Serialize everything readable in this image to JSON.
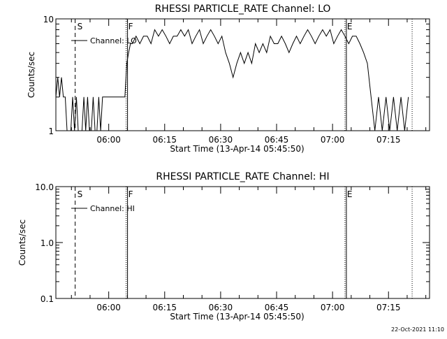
{
  "footer_date": "22-Oct-2021 11:10",
  "chart_data": [
    {
      "type": "line",
      "title": "RHESSI PARTICLE_RATE Channel: LO",
      "xlabel": "Start Time (13-Apr-14 05:45:50)",
      "ylabel": "Counts/sec",
      "yscale": "log",
      "ylim": [
        1,
        10
      ],
      "ytick_labels": [
        "1",
        "10"
      ],
      "xlim": [
        "05:45:50",
        "07:26:00"
      ],
      "xtick_labels": [
        "06:00",
        "06:15",
        "06:30",
        "06:45",
        "07:00",
        "07:15"
      ],
      "legend": {
        "entry": "Channel: LO",
        "placement": "top-left"
      },
      "markers": [
        {
          "label": "S",
          "time": "05:51:00",
          "style": "dashed"
        },
        {
          "label": "F",
          "time": "06:04:40",
          "style": "dotted"
        },
        {
          "label": "E",
          "time": "07:03:20",
          "style": "dotted"
        },
        {
          "label": "",
          "time": "07:21:20",
          "style": "dotted"
        }
      ],
      "series": [
        {
          "name": "Channel: LO",
          "x": [
            "05:45:50",
            "05:46:20",
            "05:46:50",
            "05:47:20",
            "05:47:50",
            "05:48:20",
            "05:48:50",
            "05:49:20",
            "05:49:50",
            "05:50:20",
            "05:50:50",
            "05:51:20",
            "05:51:50",
            "05:52:20",
            "05:52:50",
            "05:53:20",
            "05:53:50",
            "05:54:20",
            "05:54:50",
            "05:55:20",
            "05:55:50",
            "05:56:20",
            "05:56:50",
            "05:57:20",
            "05:57:50",
            "05:58:20",
            "05:58:50",
            "05:59:20",
            "05:59:50",
            "06:00:20",
            "06:00:50",
            "06:01:20",
            "06:01:50",
            "06:02:20",
            "06:02:50",
            "06:03:20",
            "06:03:50",
            "06:04:20",
            "06:04:50",
            "06:05:20",
            "06:05:50",
            "06:06:20",
            "06:07:20",
            "06:08:20",
            "06:09:20",
            "06:10:20",
            "06:11:20",
            "06:12:20",
            "06:13:20",
            "06:14:20",
            "06:15:20",
            "06:16:20",
            "06:17:20",
            "06:18:20",
            "06:19:20",
            "06:20:20",
            "06:21:20",
            "06:22:20",
            "06:23:20",
            "06:24:20",
            "06:25:20",
            "06:26:20",
            "06:27:20",
            "06:28:20",
            "06:29:20",
            "06:30:20",
            "06:31:20",
            "06:32:20",
            "06:33:20",
            "06:34:20",
            "06:35:20",
            "06:36:20",
            "06:37:20",
            "06:38:20",
            "06:39:20",
            "06:40:20",
            "06:41:20",
            "06:42:20",
            "06:43:20",
            "06:44:20",
            "06:45:20",
            "06:46:20",
            "06:47:20",
            "06:48:20",
            "06:49:20",
            "06:50:20",
            "06:51:20",
            "06:52:20",
            "06:53:20",
            "06:54:20",
            "06:55:20",
            "06:56:20",
            "06:57:20",
            "06:58:20",
            "06:59:20",
            "07:00:20",
            "07:01:20",
            "07:02:20",
            "07:03:20",
            "07:04:20",
            "07:05:20",
            "07:06:20",
            "07:07:20",
            "07:08:20",
            "07:09:20",
            "07:10:20",
            "07:11:20",
            "07:12:20",
            "07:13:20",
            "07:14:20",
            "07:15:20",
            "07:16:20",
            "07:17:20",
            "07:18:20",
            "07:19:20",
            "07:20:20"
          ],
          "y": [
            2,
            3,
            2,
            3,
            2,
            2,
            1,
            1,
            1,
            2,
            1,
            2,
            1,
            1,
            1,
            2,
            1,
            2,
            1,
            1,
            2,
            1,
            1,
            2,
            1,
            2,
            2,
            2,
            2,
            2,
            2,
            2,
            2,
            2,
            2,
            2,
            2,
            2,
            4,
            5,
            6,
            6,
            7,
            6,
            7,
            7,
            6,
            8,
            7,
            8,
            7,
            6,
            7,
            7,
            8,
            7,
            8,
            6,
            7,
            8,
            6,
            7,
            8,
            7,
            6,
            7,
            5,
            4,
            3,
            4,
            5,
            4,
            5,
            4,
            6,
            5,
            6,
            5,
            7,
            6,
            6,
            7,
            6,
            5,
            6,
            7,
            6,
            7,
            8,
            7,
            6,
            7,
            8,
            7,
            8,
            6,
            7,
            8,
            7,
            6,
            7,
            7,
            6,
            5,
            4,
            2,
            1,
            2,
            1,
            2,
            1,
            2,
            1,
            2,
            1,
            2
          ]
        }
      ]
    },
    {
      "type": "line",
      "title": "RHESSI PARTICLE_RATE Channel: HI",
      "xlabel": "Start Time (13-Apr-14 05:45:50)",
      "ylabel": "Counts/sec",
      "yscale": "log",
      "ylim": [
        0.1,
        10
      ],
      "ytick_labels": [
        "0.1",
        "1.0",
        "10.0"
      ],
      "xlim": [
        "05:45:50",
        "07:26:00"
      ],
      "xtick_labels": [
        "06:00",
        "06:15",
        "06:30",
        "06:45",
        "07:00",
        "07:15"
      ],
      "legend": {
        "entry": "Channel: HI",
        "placement": "top-left"
      },
      "markers": [
        {
          "label": "S",
          "time": "05:51:00",
          "style": "dashed"
        },
        {
          "label": "F",
          "time": "06:04:40",
          "style": "dotted"
        },
        {
          "label": "E",
          "time": "07:03:20",
          "style": "dotted"
        },
        {
          "label": "",
          "time": "07:21:20",
          "style": "dotted"
        }
      ],
      "series": [
        {
          "name": "Channel: HI",
          "x": [],
          "y": []
        }
      ]
    }
  ]
}
